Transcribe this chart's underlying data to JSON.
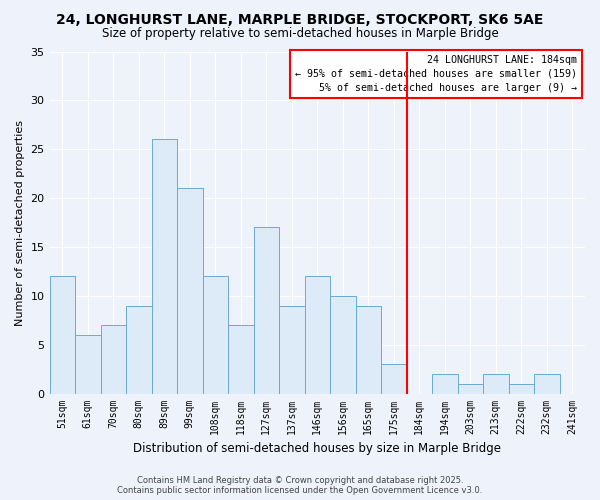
{
  "title1": "24, LONGHURST LANE, MARPLE BRIDGE, STOCKPORT, SK6 5AE",
  "title2": "Size of property relative to semi-detached houses in Marple Bridge",
  "xlabel": "Distribution of semi-detached houses by size in Marple Bridge",
  "ylabel": "Number of semi-detached properties",
  "bar_labels": [
    "51sqm",
    "61sqm",
    "70sqm",
    "80sqm",
    "89sqm",
    "99sqm",
    "108sqm",
    "118sqm",
    "127sqm",
    "137sqm",
    "146sqm",
    "156sqm",
    "165sqm",
    "175sqm",
    "184sqm",
    "194sqm",
    "203sqm",
    "213sqm",
    "222sqm",
    "232sqm",
    "241sqm"
  ],
  "bar_values": [
    12,
    6,
    7,
    9,
    26,
    21,
    12,
    7,
    17,
    9,
    12,
    10,
    9,
    3,
    0,
    2,
    1,
    2,
    1,
    2,
    0
  ],
  "bar_color": "#ddeaf8",
  "bar_edge_color": "#6aaad4",
  "vline_idx": 14,
  "vline_color": "red",
  "annotation_title": "24 LONGHURST LANE: 184sqm",
  "annotation_line1": "← 95% of semi-detached houses are smaller (159)",
  "annotation_line2": "5% of semi-detached houses are larger (9) →",
  "ylim": [
    0,
    35
  ],
  "yticks": [
    0,
    5,
    10,
    15,
    20,
    25,
    30,
    35
  ],
  "footer1": "Contains HM Land Registry data © Crown copyright and database right 2025.",
  "footer2": "Contains public sector information licensed under the Open Government Licence v3.0.",
  "bg_color": "#eef2fb",
  "grid_color": "#ffffff",
  "title1_fontsize": 10,
  "title2_fontsize": 8.5
}
